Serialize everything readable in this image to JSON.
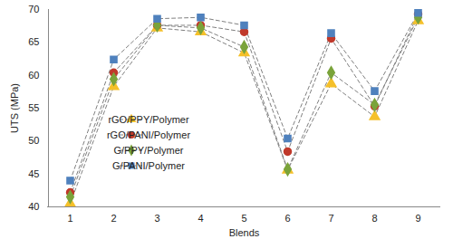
{
  "chart_data": {
    "type": "line",
    "x_label": "Blends",
    "y_label": "UTS (MPa)",
    "categories": [
      "1",
      "2",
      "3",
      "4",
      "5",
      "6",
      "7",
      "8",
      "9"
    ],
    "ylim": [
      40,
      70
    ],
    "yticks": [
      40,
      45,
      50,
      55,
      60,
      65,
      70
    ],
    "grid": false,
    "legend": "left",
    "series": [
      {
        "name": "rGO/PPY/Polymer",
        "color": "#f5c02a",
        "marker": "triangle",
        "line_style": "dashed",
        "values": [
          40.5,
          58.3,
          67.2,
          66.6,
          63.4,
          45.6,
          58.7,
          53.7,
          68.3
        ]
      },
      {
        "name": "rGO/PANI/Polymer",
        "color": "#c0392b",
        "marker": "circle",
        "line_style": "dashed",
        "values": [
          42.2,
          60.4,
          67.6,
          67.6,
          66.6,
          48.4,
          65.6,
          55.3,
          69.3
        ]
      },
      {
        "name": "G/PPY/Polymer",
        "color": "#7aa33a",
        "marker": "diamond",
        "line_style": "dashed",
        "values": [
          41.5,
          59.4,
          67.6,
          67.2,
          64.3,
          45.7,
          60.4,
          55.5,
          68.8
        ]
      },
      {
        "name": "G/PANI/Polymer",
        "color": "#4f81bd",
        "marker": "square",
        "line_style": "dashed",
        "values": [
          44.0,
          62.4,
          68.6,
          68.8,
          67.6,
          50.4,
          66.4,
          57.6,
          69.5
        ]
      }
    ]
  }
}
